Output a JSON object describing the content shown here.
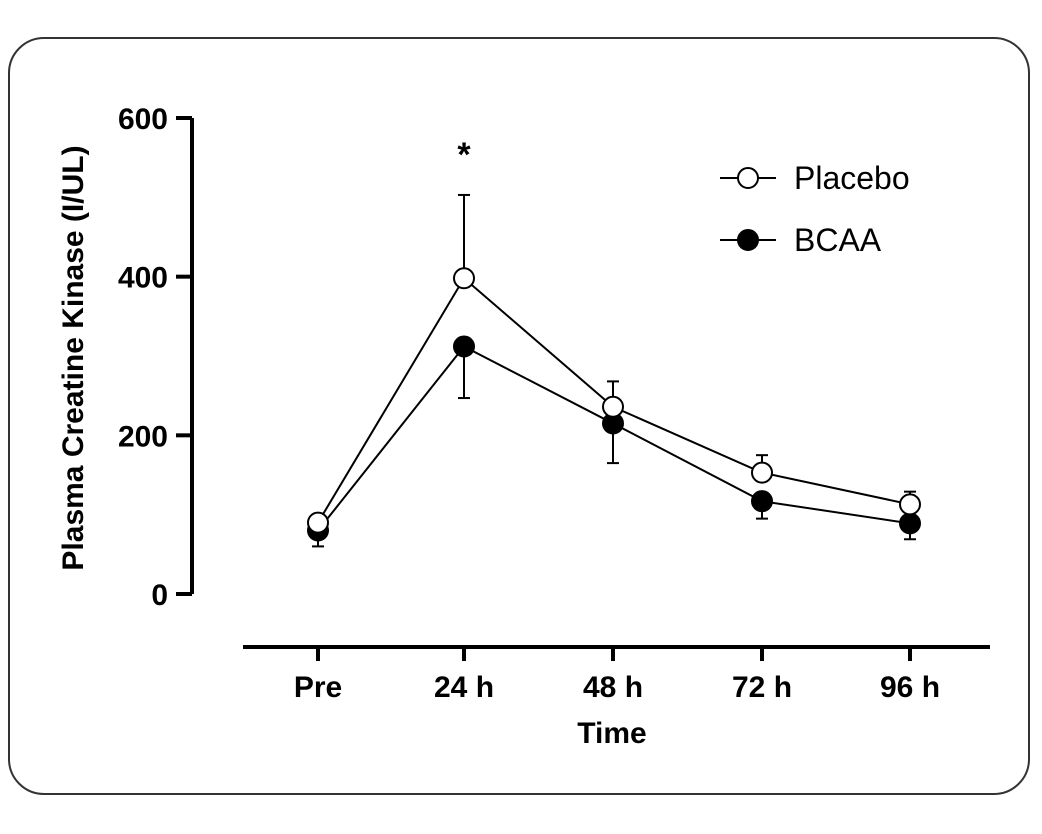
{
  "chart_data": {
    "type": "line",
    "title": "",
    "xlabel": "Time",
    "ylabel": "Plasma Creatine Kinase (I/UL)",
    "categories": [
      "Pre",
      "24 h",
      "48 h",
      "72 h",
      "96 h"
    ],
    "ylim": [
      0,
      600
    ],
    "yticks": [
      0,
      200,
      400,
      600
    ],
    "grid": false,
    "legend_position": "top-right",
    "series": [
      {
        "name": "Placebo",
        "marker": "open-circle",
        "values": [
          90,
          398,
          236,
          153,
          113
        ],
        "error_plus": [
          10,
          105,
          32,
          22,
          16
        ],
        "error_minus": [
          0,
          0,
          0,
          0,
          0
        ]
      },
      {
        "name": "BCAA",
        "marker": "filled-circle",
        "values": [
          80,
          312,
          215,
          117,
          89
        ],
        "error_plus": [
          0,
          0,
          0,
          0,
          0
        ],
        "error_minus": [
          20,
          65,
          50,
          22,
          20
        ]
      }
    ],
    "annotations": [
      {
        "category": "24 h",
        "text": "*"
      }
    ],
    "colors": {
      "axis": "#000000",
      "line": "#000000",
      "placebo_fill": "#ffffff",
      "bcaa_fill": "#000000"
    }
  }
}
